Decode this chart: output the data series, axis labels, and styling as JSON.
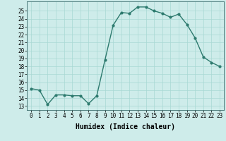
{
  "x": [
    0,
    1,
    2,
    3,
    4,
    5,
    6,
    7,
    8,
    9,
    10,
    11,
    12,
    13,
    14,
    15,
    16,
    17,
    18,
    19,
    20,
    21,
    22,
    23
  ],
  "y": [
    15.2,
    15.0,
    13.2,
    14.4,
    14.4,
    14.3,
    14.3,
    13.3,
    14.3,
    18.8,
    23.2,
    24.8,
    24.7,
    25.5,
    25.5,
    25.0,
    24.7,
    24.2,
    24.6,
    23.3,
    21.6,
    19.2,
    18.5,
    18.0
  ],
  "line_color": "#2d7a6e",
  "marker": "o",
  "marker_size": 2.0,
  "line_width": 1.0,
  "xlabel": "Humidex (Indice chaleur)",
  "xlabel_fontsize": 7,
  "tick_fontsize": 5.5,
  "background_color": "#ceecea",
  "grid_color": "#a8d8d4",
  "xlim": [
    -0.5,
    23.5
  ],
  "ylim": [
    12.5,
    26.2
  ],
  "yticks": [
    13,
    14,
    15,
    16,
    17,
    18,
    19,
    20,
    21,
    22,
    23,
    24,
    25
  ],
  "xtick_labels": [
    "0",
    "1",
    "2",
    "3",
    "4",
    "5",
    "6",
    "7",
    "8",
    "9",
    "10",
    "11",
    "12",
    "13",
    "14",
    "15",
    "16",
    "17",
    "18",
    "19",
    "20",
    "21",
    "22",
    "23"
  ]
}
